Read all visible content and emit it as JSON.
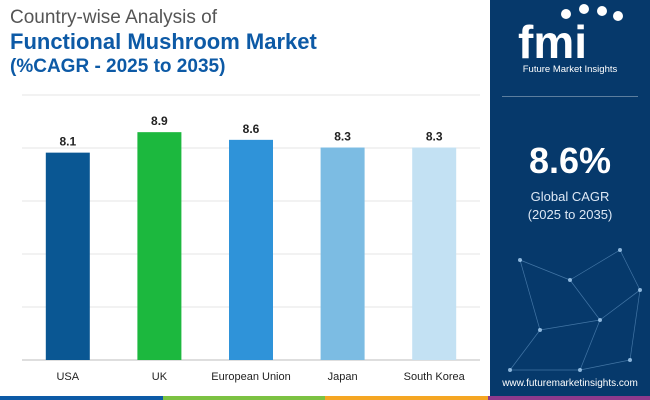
{
  "title": {
    "line1": "Country-wise Analysis of",
    "line2": "Functional Mushroom Market",
    "line3": "(%CAGR - 2025 to 2035)"
  },
  "chart_data": {
    "type": "bar",
    "categories": [
      "USA",
      "UK",
      "European Union",
      "Japan",
      "South Korea"
    ],
    "values": [
      8.1,
      8.9,
      8.6,
      8.3,
      8.3
    ],
    "bar_colors": [
      "#0a5793",
      "#1cb83e",
      "#2f93d9",
      "#7cbce3",
      "#c3e1f3"
    ],
    "grid": true,
    "xlabel": "",
    "ylabel": ""
  },
  "side_panel": {
    "logo_text": "Future Market Insights",
    "cagr_value": "8.6%",
    "cagr_label_line1": "Global CAGR",
    "cagr_label_line2": "(2025 to 2035)",
    "website": "www.futuremarketinsights.com",
    "background_color": "#06396b"
  },
  "bottom_bar_colors": [
    "#0d5aa6",
    "#7cc242",
    "#f5a623",
    "#8e3a8c"
  ]
}
